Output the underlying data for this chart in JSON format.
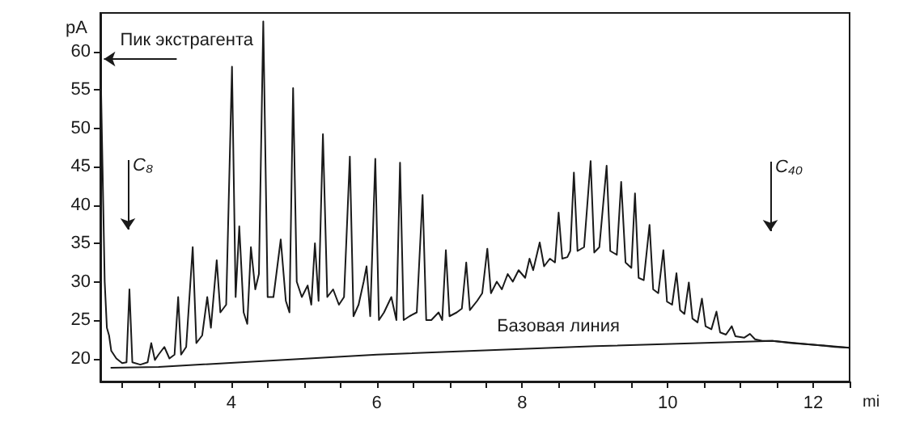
{
  "chart_data": {
    "type": "line",
    "xlabel": "mi",
    "ylabel": "pA",
    "xlim": [
      2.2,
      12.5
    ],
    "ylim": [
      17,
      65
    ],
    "xticks": [
      {
        "value": 2.5,
        "label": null
      },
      {
        "value": 3,
        "label": null
      },
      {
        "value": 3.5,
        "label": null
      },
      4,
      {
        "value": 4.5,
        "label": null
      },
      {
        "value": 5,
        "label": null
      },
      {
        "value": 5.5,
        "label": null
      },
      6,
      {
        "value": 6.5,
        "label": null
      },
      {
        "value": 7,
        "label": null
      },
      {
        "value": 7.5,
        "label": null
      },
      8,
      {
        "value": 8.5,
        "label": null
      },
      {
        "value": 9,
        "label": null
      },
      {
        "value": 9.5,
        "label": null
      },
      10,
      {
        "value": 10.5,
        "label": null
      },
      {
        "value": 11,
        "label": null
      },
      {
        "value": 11.5,
        "label": null
      },
      12,
      {
        "value": 12.5,
        "label": null
      }
    ],
    "yticks": [
      20,
      25,
      30,
      35,
      40,
      45,
      50,
      55,
      60
    ],
    "grid": false,
    "marker": "none",
    "line_style": "solid",
    "annotations": [
      {
        "text": "Пик экстрагента",
        "x": 2.25,
        "y": 59
      },
      "C₈",
      "C₄₀",
      "Базовая линия"
    ],
    "series": [
      {
        "color": "#1a1a1a",
        "x": [
          2.2,
          2.23,
          2.26,
          2.29,
          2.32,
          2.35,
          2.42,
          2.5,
          2.56,
          2.6,
          2.64,
          2.75,
          2.85,
          2.9,
          2.95,
          3.0,
          3.08,
          3.15,
          3.22,
          3.27,
          3.31,
          3.38,
          3.47,
          3.52,
          3.6,
          3.67,
          3.72,
          3.8,
          3.85,
          3.93,
          4.01,
          4.06,
          4.11,
          4.17,
          4.22,
          4.27,
          4.33,
          4.38,
          4.44,
          4.5,
          4.58,
          4.68,
          4.75,
          4.8,
          4.85,
          4.9,
          4.97,
          5.05,
          5.1,
          5.15,
          5.2,
          5.26,
          5.32,
          5.4,
          5.48,
          5.55,
          5.63,
          5.68,
          5.75,
          5.82,
          5.86,
          5.91,
          5.98,
          6.03,
          6.1,
          6.2,
          6.27,
          6.32,
          6.37,
          6.45,
          6.55,
          6.63,
          6.68,
          6.75,
          6.85,
          6.9,
          6.95,
          7.0,
          7.1,
          7.17,
          7.23,
          7.28,
          7.38,
          7.45,
          7.52,
          7.57,
          7.65,
          7.72,
          7.8,
          7.87,
          7.95,
          8.04,
          8.1,
          8.15,
          8.24,
          8.3,
          8.38,
          8.45,
          8.5,
          8.55,
          8.62,
          8.66,
          8.71,
          8.76,
          8.85,
          8.94,
          8.99,
          9.06,
          9.16,
          9.21,
          9.3,
          9.36,
          9.42,
          9.5,
          9.55,
          9.6,
          9.67,
          9.75,
          9.8,
          9.87,
          9.94,
          9.99,
          10.06,
          10.12,
          10.17,
          10.23,
          10.29,
          10.34,
          10.41,
          10.47,
          10.52,
          10.6,
          10.67,
          10.72,
          10.8,
          10.88,
          10.93,
          11.05,
          11.13,
          11.2,
          11.3,
          11.44,
          11.7,
          12.0,
          12.3,
          12.5
        ],
        "values": [
          60,
          45,
          30,
          24,
          23,
          21,
          20,
          19.4,
          19.5,
          29,
          19.5,
          19.2,
          19.5,
          22,
          19.8,
          20.5,
          21.5,
          20,
          20.5,
          28,
          20.5,
          21.5,
          34.5,
          22,
          23,
          28,
          24,
          32.8,
          26,
          27,
          58,
          28,
          37.2,
          26,
          24.5,
          34.5,
          29,
          31,
          63.9,
          28,
          28,
          35.5,
          27.5,
          26,
          55.2,
          30,
          28,
          29.5,
          27,
          35,
          27.5,
          49.2,
          28,
          29,
          27,
          28,
          46.3,
          25.5,
          27,
          30,
          32,
          25.5,
          46,
          25,
          26,
          28,
          25,
          45.5,
          25,
          25.5,
          26,
          41.3,
          25,
          25,
          26,
          25,
          34.1,
          25.5,
          26,
          26.5,
          32.5,
          26.3,
          27.5,
          28.5,
          34.3,
          28.5,
          30,
          29,
          31,
          30,
          31.5,
          30.5,
          33,
          31.5,
          35.1,
          32,
          33,
          32.5,
          39,
          33,
          33.2,
          34,
          44.2,
          34,
          34.5,
          45.7,
          33.8,
          34.5,
          45.1,
          34,
          33.5,
          43,
          32.5,
          31.8,
          41.5,
          30.5,
          30.2,
          37.4,
          29,
          28.5,
          34.1,
          27.4,
          27,
          31.1,
          26.3,
          25.8,
          29.9,
          25.2,
          24.7,
          27.8,
          24.2,
          23.8,
          26.1,
          23.4,
          23.1,
          24.2,
          22.9,
          22.7,
          23.2,
          22.5,
          22.3,
          22.3,
          22,
          21.8,
          21.5,
          21.4
        ]
      },
      {
        "color": "#1a1a1a",
        "x": [
          2.35,
          3.0,
          6.0,
          9.0,
          11.44,
          12.0,
          12.5
        ],
        "values": [
          18.8,
          18.9,
          20.5,
          21.6,
          22.3,
          21.8,
          21.4
        ]
      }
    ]
  }
}
